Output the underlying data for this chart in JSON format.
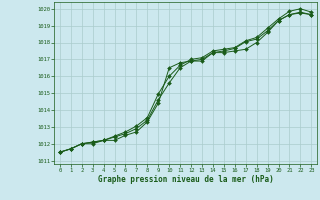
{
  "title": "Graphe pression niveau de la mer (hPa)",
  "bg_color": "#cce8ee",
  "grid_color": "#aacccc",
  "line_color": "#1a5c1a",
  "xlim": [
    -0.5,
    23.5
  ],
  "ylim": [
    1010.8,
    1020.4
  ],
  "yticks": [
    1011,
    1012,
    1013,
    1014,
    1015,
    1016,
    1017,
    1018,
    1019,
    1020
  ],
  "xticks": [
    0,
    1,
    2,
    3,
    4,
    5,
    6,
    7,
    8,
    9,
    10,
    11,
    12,
    13,
    14,
    15,
    16,
    17,
    18,
    19,
    20,
    21,
    22,
    23
  ],
  "line1": [
    1011.5,
    1011.7,
    1012.0,
    1012.0,
    1012.2,
    1012.2,
    1012.5,
    1012.7,
    1013.3,
    1014.4,
    1016.5,
    1016.8,
    1016.9,
    1016.9,
    1017.4,
    1017.4,
    1017.5,
    1017.6,
    1018.0,
    1018.6,
    1019.3,
    1019.65,
    1019.75,
    1019.65
  ],
  "line2": [
    1011.5,
    1011.7,
    1012.0,
    1012.1,
    1012.2,
    1012.4,
    1012.6,
    1012.9,
    1013.4,
    1014.6,
    1015.6,
    1016.5,
    1016.9,
    1017.0,
    1017.4,
    1017.5,
    1017.65,
    1018.05,
    1018.2,
    1018.7,
    1019.3,
    1019.65,
    1019.8,
    1019.65
  ],
  "line3": [
    1011.5,
    1011.7,
    1012.0,
    1012.1,
    1012.2,
    1012.45,
    1012.7,
    1013.05,
    1013.55,
    1014.95,
    1016.0,
    1016.65,
    1017.0,
    1017.1,
    1017.5,
    1017.6,
    1017.7,
    1018.1,
    1018.3,
    1018.85,
    1019.4,
    1019.85,
    1020.0,
    1019.8
  ]
}
